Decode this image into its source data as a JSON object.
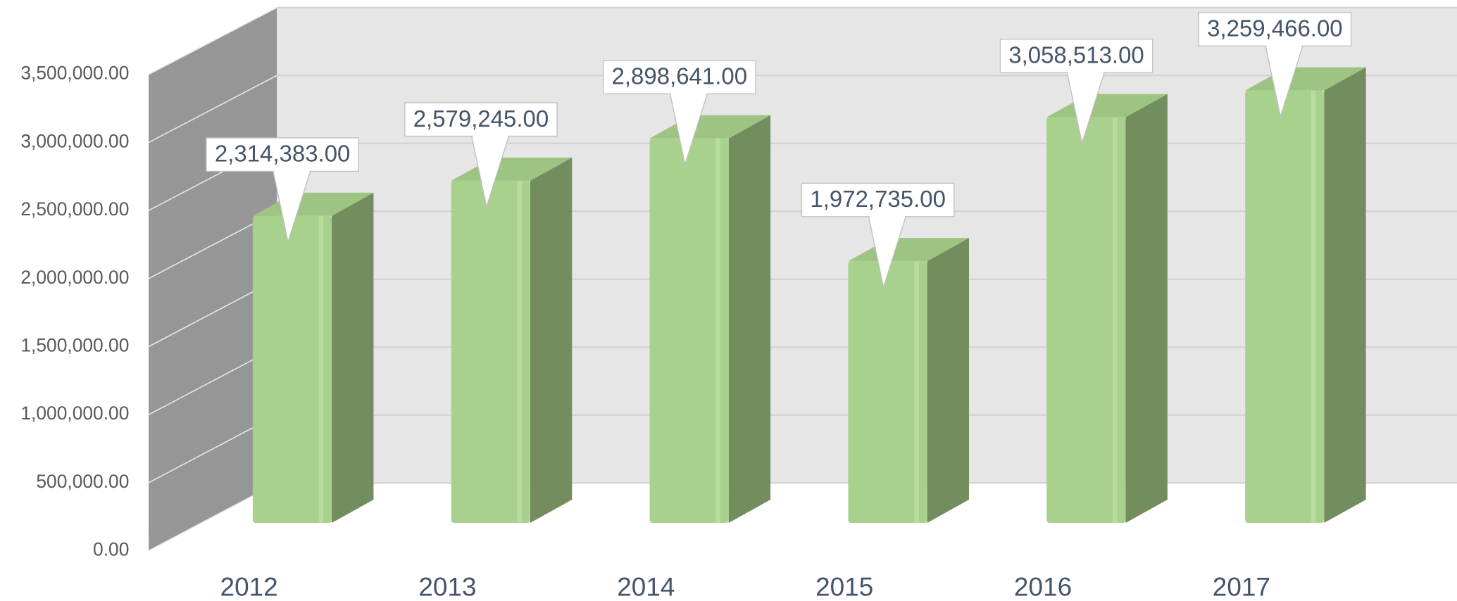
{
  "chart_data": {
    "type": "bar3d",
    "categories": [
      "2012",
      "2013",
      "2014",
      "2015",
      "2016",
      "2017"
    ],
    "values": [
      2314383,
      2579245,
      2898641,
      1972735,
      3058513,
      3259466
    ],
    "value_labels": [
      "2,314,383.00",
      "2,579,245.00",
      "2,898,641.00",
      "1,972,735.00",
      "3,058,513.00",
      "3,259,466.00"
    ],
    "color": "#a9d18e",
    "ylim": [
      0,
      3500000
    ],
    "yticks": [
      {
        "value": 0,
        "label": "0.00"
      },
      {
        "value": 500000,
        "label": "500,000.00"
      },
      {
        "value": 1000000,
        "label": "1,000,000.00"
      },
      {
        "value": 1500000,
        "label": "1,500,000.00"
      },
      {
        "value": 2000000,
        "label": "2,000,000.00"
      },
      {
        "value": 2500000,
        "label": "2,500,000.00"
      },
      {
        "value": 3000000,
        "label": "3,000,000.00"
      },
      {
        "value": 3500000,
        "label": "3,500,000.00"
      }
    ],
    "grid": true
  }
}
